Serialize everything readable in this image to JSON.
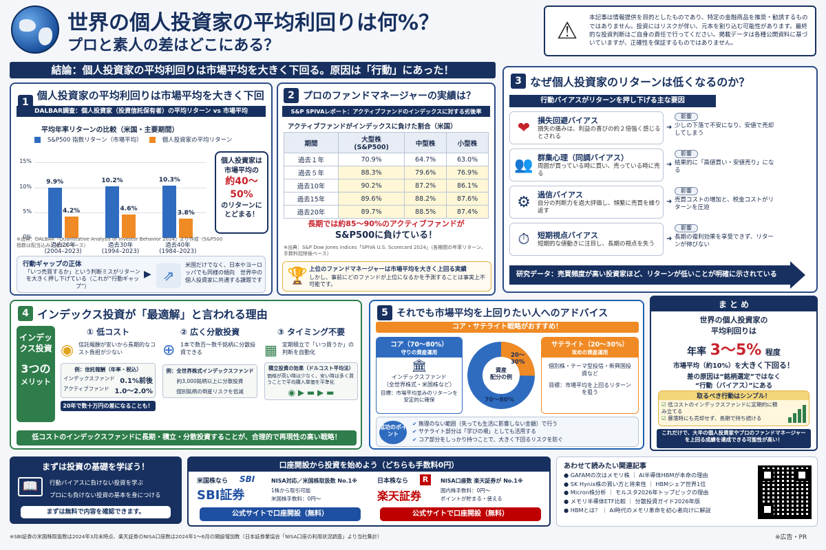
{
  "header": {
    "title": "世界の個人投資家の平均利回りは何%？",
    "subtitle": "プロと素人の差はどこにある？",
    "disclaimer": "本記事は情報提供を目的としたものであり、特定の金融商品を推奨・勧誘するものではありません。投資にはリスクが伴い、元本を割り込む可能性があります。最終的な投資判断はご自身の責任で行ってください。掲載データは各種公開資料に基づいていますが、正確性を保証するものではありません。"
  },
  "conclusion": "結論：個人投資家の平均利回りは市場平均を大きく下回る。原因は「行動」にあった！",
  "s1": {
    "num": "1",
    "title": "個人投資家の平均利回りは市場平均を大きく下回る",
    "sub": "DALBAR調査：個人投資家（投資信託保有者）の平均リターン vs 市場平均",
    "chart_title": "平均年率リターンの比較（米国・主要期間）",
    "legend_a": "S&P500 指数リターン（市場平均）",
    "legend_b": "個人投資家の平均リターン",
    "callout_1": "個人投資家は",
    "callout_2": "市場平均の",
    "callout_3": "約40〜50%",
    "callout_4": "のリターンに",
    "callout_5": "とどまる！",
    "source": "※出典：DALBAR「Quantitative Analysis of Investor Behavior 2024」より作成（S&P500指数は配当込み、米ドルベース）",
    "gap_title": "行動ギャップの正体",
    "gap_text": "「いつ売買するか」という判断ミスがリターンを大きく押し下げている（これが“行動ギャップ”）",
    "gap_right": "米国だけでなく、日本やヨーロッパでも同様の傾向　世界中の個人投資家に共通する課題です"
  },
  "chart_data": {
    "type": "bar",
    "categories": [
      "過去20年\n(2004–2023)",
      "過去30年\n(1994–2023)",
      "過去40年\n(1984–2023)"
    ],
    "category_labels": [
      [
        "過去20年",
        "(2004–2023)"
      ],
      [
        "過去30年",
        "(1994–2023)"
      ],
      [
        "過去40年",
        "(1984–2023)"
      ]
    ],
    "series": [
      {
        "name": "S&P500 指数リターン（市場平均）",
        "values": [
          9.9,
          10.2,
          10.3
        ],
        "labels": [
          "9.9%",
          "10.2%",
          "10.3%"
        ],
        "color": "#2f6cc0"
      },
      {
        "name": "個人投資家の平均リターン",
        "values": [
          4.2,
          4.6,
          3.8
        ],
        "labels": [
          "4.2%",
          "4.6%",
          "3.8%"
        ],
        "color": "#f08a24"
      }
    ],
    "yticks": [
      "15%",
      "10%",
      "5%",
      "0%"
    ],
    "ylim": [
      0,
      15
    ]
  },
  "s2": {
    "num": "2",
    "title": "プロのファンドマネージャーの実績は？",
    "sub": "S&P SPIVAレポート：アクティブファンドのインデックスに対する劣後率",
    "table_title": "アクティブファンドがインデックスに負けた割合（米国）",
    "headers": [
      "期間",
      "大型株\n(S&P500)",
      "中型株",
      "小型株"
    ],
    "rows": [
      [
        "過去１年",
        "70.9%",
        "64.7%",
        "63.0%"
      ],
      [
        "過去５年",
        "88.3%",
        "79.6%",
        "76.9%"
      ],
      [
        "過去10年",
        "90.2%",
        "87.2%",
        "86.1%"
      ],
      [
        "過去15年",
        "89.6%",
        "88.2%",
        "87.6%"
      ],
      [
        "過去20年",
        "89.7%",
        "88.5%",
        "87.4%"
      ]
    ],
    "highlight_1": "長期では約85〜90%のアクティブファンドが",
    "highlight_2": "S&P500に負けている！",
    "source": "※出典：S&P Dow Jones Indices「SPIVA U.S. Scorecard 2024」（各期間の年率リターン、手数料控除後ベース）",
    "note_title": "上位のファンドマネージャーは市場平均を大きく上回る実績",
    "note_text": "しかし、事前にどのファンドが上位になるかを予測することは事実上不可能です。"
  },
  "s3": {
    "num": "3",
    "title": "なぜ個人投資家のリターンは低くなるのか？",
    "banner": "行動バイアスがリターンを押し下げる主な要因",
    "effect_tag": "影響",
    "items": [
      {
        "title": "損失回避バイアス",
        "desc": "損失の痛みは、利益の喜びの約２倍強く感じるとされる",
        "effect": "少しの下落で不安になり、安値で売却してしまう",
        "icon": "heart-down-icon"
      },
      {
        "title": "群集心理（同調バイアス）",
        "desc": "周囲が買っている時に買い、売っている時に売る",
        "effect": "結果的に「高値買い・安値売り」になる",
        "icon": "crowd-icon"
      },
      {
        "title": "過信バイアス",
        "desc": "自分の判断力を過大評価し、頻繁に売買を繰り返す",
        "effect": "売買コストの増加と、税金コストがリターンを圧迫",
        "icon": "head-gear-icon"
      },
      {
        "title": "短期視点バイアス",
        "desc": "短期的な値動きに注目し、長期の視点を失う",
        "effect": "長期の複利効果を享受できず、リターンが伸びない",
        "icon": "clock-icon"
      }
    ],
    "research": "研究データ：売買頻度が高い投資家ほど、リターンが低いことが明確に示されている"
  },
  "s4": {
    "num": "4",
    "title": "インデックス投資が「最適解」と言われる理由",
    "side_1": "インデックス投資",
    "side_2": "3つの",
    "side_3": "メリット",
    "m1_title": "① 低コスト",
    "m1_text": "信託報酬が安いから長期的なコスト負担が少ない",
    "m1_box_title": "例：信託報酬（年率・税込）",
    "m1_row1_label": "インデックスファンド",
    "m1_row1_val": "0.1%前後",
    "m1_row2_label": "アクティブファンド",
    "m1_row2_val": "1.0〜2.0%",
    "m1_foot": "20年で数十万円の差になることも！",
    "m2_title": "② 広く分散投資",
    "m2_text": "1本で数百〜数千銘柄に分散投資できる",
    "m2_box_title": "例：全世界株式インデックスファンド",
    "m2_line1": "約3,000銘柄以上に分散投資",
    "m2_line2": "個別銘柄の倒産リスクを低減",
    "m3_title": "③ タイミング不要",
    "m3_text": "定期積立で「いつ買うか」の判断を自動化",
    "m3_box_title": "積立投資の効果（ドルコスト平均法）",
    "m3_box_text": "価格が高い時は少なく、安い時は多く買うことで平均購入単価を平準化",
    "footer": "低コストのインデックスファンドに長期・積立・分散投資することが、合理的で再現性の高い戦略！"
  },
  "s5": {
    "num": "5",
    "title": "それでも市場平均を上回りたい人へのアドバイス",
    "banner": "コア・サテライト戦略がおすすめ！",
    "core_title": "コア（70〜80%）",
    "core_sub": "守りの資産運用",
    "core_fund": "インデックスファンド",
    "core_fund2": "（全世界株式・米国株など）",
    "core_goal": "目標：市場平均並みのリターンを安定的に確保",
    "donut_center1": "資産",
    "donut_center2": "配分の例",
    "donut_core": "70〜80%",
    "donut_sat": "20〜30%",
    "sat_title": "サテライト（20〜30%）",
    "sat_sub": "攻めの資産運用",
    "sat_fund": "個別株・テーマ型投信・新興国投資など",
    "sat_goal": "目標：市場平均を上回るリターンを狙う",
    "point_label": "成功のポイント",
    "points": [
      "無理のない範囲（失っても生活に影響しない金額）で行う",
      "サテライト部分は「学びの場」としても活用する",
      "コア部分をしっかり持つことで、大きく下回るリスクを防ぐ"
    ]
  },
  "summary": {
    "title": "ま と め",
    "line1": "世界の個人投資家の",
    "line2": "平均利回りは",
    "rate_pre": "年率",
    "rate": "3〜5%",
    "rate_post": "程度",
    "line3_a": "市場平均（約10%）を",
    "line3_b": "大きく下回る！",
    "cause_1": "差の原因は“銘柄選定”ではなく",
    "cause_2": "“行動（バイアス）”にある",
    "box_title": "取るべき行動はシンプル！",
    "actions": [
      "低コストのインデックスファンドに定期的に積み立てる",
      "暴落時にも売却せず、長期で持ち続ける"
    ],
    "final": "これだけで、大半の個人投資家やプロのファンドマネージャーを上回る成績を達成できる可能性が高い！"
  },
  "bottom": {
    "learn_title": "まずは投資の基礎を学ぼう！",
    "learn_1": "行動バイアスに負けない投資を学ぶ",
    "learn_2": "プロにも負けない投資の基本を身につける",
    "learn_btn": "まずは無料で内容を確認できます。",
    "open_title": "口座開設から投資を始めよう（どちらも手数料0円）",
    "sbi_pre": "米国株なら",
    "sbi_logo": "SBI",
    "sbi_name": "SBI証券",
    "sbi_feat": "NISA対応／米国株取扱数 No.1※",
    "sbi_f2": "1株から取引可能",
    "sbi_f3": "米国株手数料：0円〜",
    "sbi_btn": "公式サイトで口座開設（無料）",
    "rak_pre": "日本株なら",
    "rak_logo": "R",
    "rak_name": "楽天証券",
    "rak_feat": "NISA口座数 楽天証券が No.1※",
    "rak_f2": "国内株手数料：0円〜",
    "rak_f3": "ポイントが貯まる・使える",
    "rak_btn": "公式サイトで口座開設（無料）",
    "related_title": "あわせて読みたい関連記事",
    "related": [
      "GAFAMの次はメモリ株 ｜ AI半導体HBMが本命の理由",
      "SK Hynix株の買い方と将来性 ｜ HBMシェア世界1位",
      "Micron株分析 ｜ モルスタ2026年トップピックの理由",
      "メモリ半導体ETF比較 ｜ 分散投資ガイド2026年版",
      "HBMとは？ ｜ AI時代のメモリ革命を初心者向けに解説"
    ],
    "footnote": "※SBI証券の米国株取扱数は2024年3月末時点、楽天証券のNISA口座数は2024年1〜6月の開設増加数（日本証券業協会「NISA口座の利用状況調査」より当社集計）",
    "pr": "※広告・PR"
  },
  "colors": {
    "navy": "#17305f",
    "blue": "#2f6cc0",
    "orange": "#f08a24",
    "red": "#c8232c",
    "green": "#2e7d4a"
  }
}
